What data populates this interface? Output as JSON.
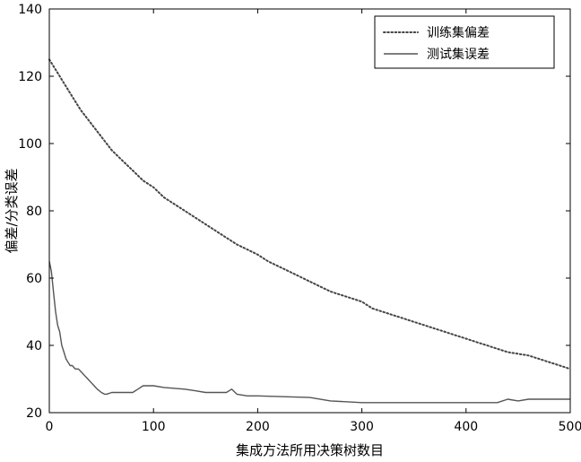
{
  "chart_data": {
    "type": "line",
    "title": "",
    "xlabel": "集成方法所用决策树数目",
    "ylabel": "偏差/分类误差",
    "xlim": [
      0,
      500
    ],
    "ylim": [
      20,
      140
    ],
    "xticks": [
      0,
      100,
      200,
      300,
      400,
      500
    ],
    "yticks": [
      20,
      40,
      60,
      80,
      100,
      120,
      140
    ],
    "grid": false,
    "legend_position": "top-right",
    "series": [
      {
        "name": "训练集偏差",
        "style": "dotted",
        "color": "#444444",
        "x": [
          0,
          10,
          20,
          30,
          40,
          50,
          60,
          70,
          80,
          90,
          100,
          110,
          120,
          130,
          140,
          150,
          160,
          170,
          180,
          190,
          200,
          210,
          220,
          230,
          240,
          250,
          260,
          270,
          280,
          290,
          300,
          310,
          320,
          330,
          340,
          350,
          360,
          370,
          380,
          390,
          400,
          410,
          420,
          430,
          440,
          450,
          460,
          470,
          480,
          490,
          500
        ],
        "y": [
          125,
          120,
          115,
          110,
          106,
          102,
          98,
          95,
          92,
          89,
          87,
          84,
          82,
          80,
          78,
          76,
          74,
          72,
          70,
          68.5,
          67,
          65,
          63.5,
          62,
          60.5,
          59,
          57.5,
          56,
          55,
          54,
          53,
          51,
          50,
          49,
          48,
          47,
          46,
          45,
          44,
          43,
          42,
          41,
          40,
          39,
          38,
          37.5,
          37,
          36,
          35,
          34,
          33
        ]
      },
      {
        "name": "测试集误差",
        "style": "solid",
        "color": "#555555",
        "x": [
          0,
          2,
          4,
          6,
          8,
          10,
          12,
          14,
          16,
          18,
          20,
          22,
          25,
          28,
          31,
          34,
          37,
          40,
          43,
          46,
          50,
          53,
          55,
          60,
          65,
          70,
          80,
          85,
          90,
          100,
          110,
          130,
          140,
          150,
          160,
          170,
          175,
          180,
          190,
          195,
          200,
          250,
          270,
          300,
          350,
          400,
          430,
          440,
          450,
          460,
          470,
          480,
          500
        ],
        "y": [
          65,
          62,
          56,
          50,
          46,
          44,
          40,
          38,
          36,
          35,
          34,
          34,
          33,
          33,
          32,
          31,
          30,
          29,
          28,
          27,
          26,
          25.5,
          25.5,
          26,
          26,
          26,
          26,
          27,
          28,
          28,
          27.5,
          27,
          26.5,
          26,
          26,
          26,
          27,
          25.5,
          25,
          25,
          25,
          24.5,
          23.5,
          23,
          23,
          23,
          23,
          24,
          23.5,
          24,
          24,
          24,
          24
        ]
      }
    ]
  }
}
